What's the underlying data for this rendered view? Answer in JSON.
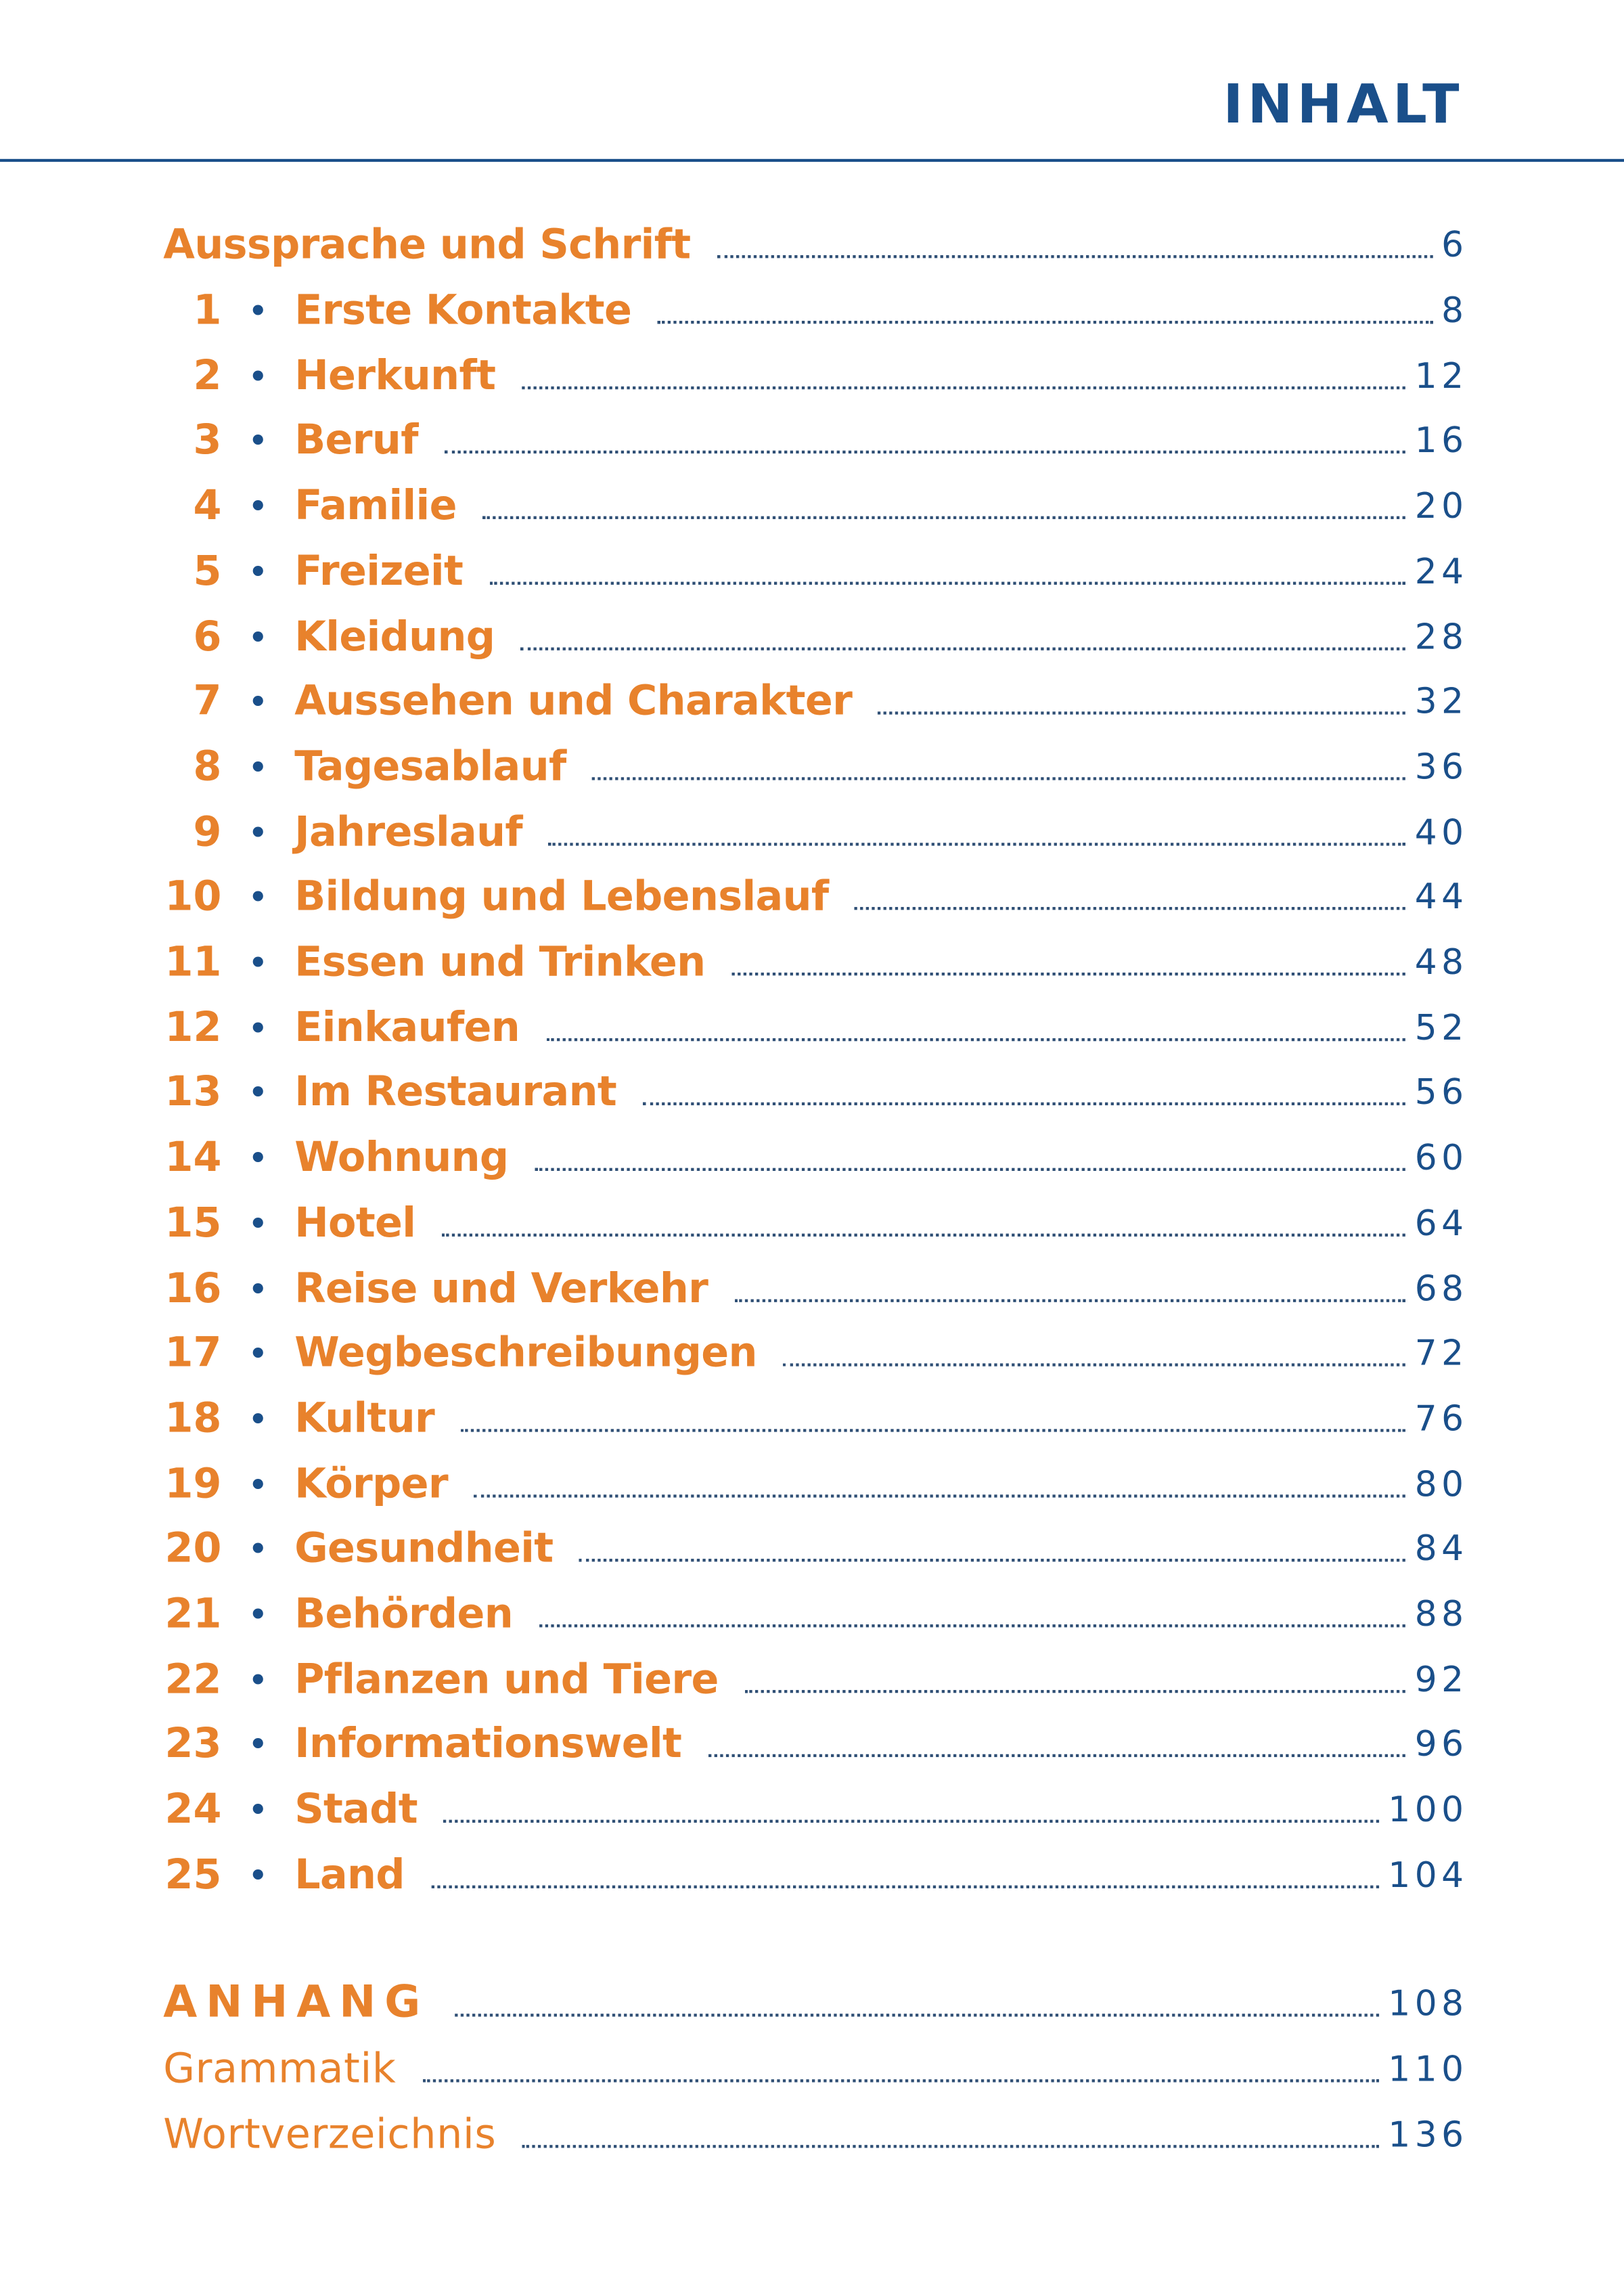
{
  "title": "INHALT",
  "intro": {
    "label": "Aussprache und Schrift",
    "page": "6"
  },
  "chapters": [
    {
      "number": "1",
      "label": "Erste Kontakte",
      "page": "8"
    },
    {
      "number": "2",
      "label": "Herkunft",
      "page": "12"
    },
    {
      "number": "3",
      "label": "Beruf",
      "page": "16"
    },
    {
      "number": "4",
      "label": "Familie",
      "page": "20"
    },
    {
      "number": "5",
      "label": "Freizeit",
      "page": "24"
    },
    {
      "number": "6",
      "label": "Kleidung",
      "page": "28"
    },
    {
      "number": "7",
      "label": "Aussehen und Charakter",
      "page": "32"
    },
    {
      "number": "8",
      "label": "Tagesablauf",
      "page": "36"
    },
    {
      "number": "9",
      "label": "Jahreslauf",
      "page": "40"
    },
    {
      "number": "10",
      "label": "Bildung und Lebenslauf",
      "page": "44"
    },
    {
      "number": "11",
      "label": "Essen und Trinken",
      "page": "48"
    },
    {
      "number": "12",
      "label": "Einkaufen",
      "page": "52"
    },
    {
      "number": "13",
      "label": "Im Restaurant",
      "page": "56"
    },
    {
      "number": "14",
      "label": "Wohnung",
      "page": "60"
    },
    {
      "number": "15",
      "label": "Hotel",
      "page": "64"
    },
    {
      "number": "16",
      "label": "Reise und Verkehr",
      "page": "68"
    },
    {
      "number": "17",
      "label": "Wegbeschreibungen",
      "page": "72"
    },
    {
      "number": "18",
      "label": "Kultur",
      "page": "76"
    },
    {
      "number": "19",
      "label": "Körper",
      "page": "80"
    },
    {
      "number": "20",
      "label": "Gesundheit",
      "page": "84"
    },
    {
      "number": "21",
      "label": "Behörden",
      "page": "88"
    },
    {
      "number": "22",
      "label": "Pflanzen und Tiere",
      "page": "92"
    },
    {
      "number": "23",
      "label": "Informationswelt",
      "page": "96"
    },
    {
      "number": "24",
      "label": "Stadt",
      "page": "100"
    },
    {
      "number": "25",
      "label": "Land",
      "page": "104"
    }
  ],
  "appendix": {
    "label": "ANHANG",
    "page": "108"
  },
  "appendix_items": [
    {
      "label": "Grammatik",
      "page": "110"
    },
    {
      "label": "Wortverzeichnis",
      "page": "136"
    }
  ],
  "colors": {
    "heading": "#1a4f8a",
    "entry": "#e8822c",
    "leader": "#2f4f75"
  }
}
